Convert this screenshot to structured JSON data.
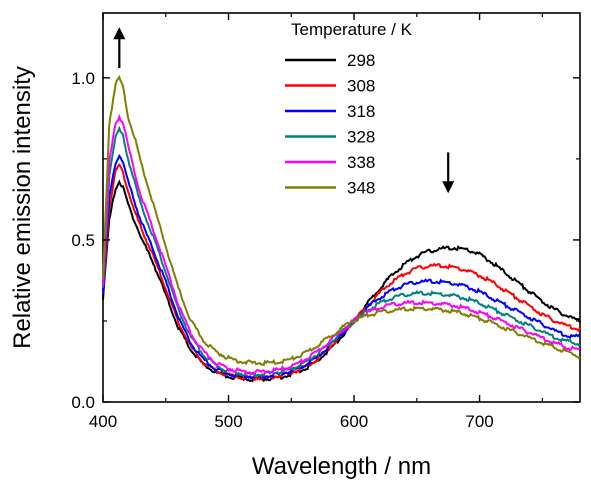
{
  "chart_data": {
    "type": "line",
    "title": "",
    "xlabel": "Wavelength / nm",
    "ylabel": "Relative emission intensity",
    "xlim": [
      400,
      780
    ],
    "ylim": [
      0.0,
      1.2
    ],
    "xticks": [
      400,
      500,
      600,
      700
    ],
    "xtick_labels": [
      "400",
      "500",
      "600",
      "700"
    ],
    "yticks": [
      0.0,
      0.5,
      1.0
    ],
    "ytick_labels": [
      "0.0",
      "0.5",
      "1.0"
    ],
    "grid": false,
    "legend": {
      "title": "Temperature / K",
      "position": "top-right"
    },
    "x": [
      400,
      405,
      410,
      413,
      416,
      420,
      425,
      430,
      440,
      450,
      460,
      470,
      480,
      490,
      500,
      510,
      520,
      530,
      540,
      550,
      560,
      570,
      580,
      590,
      600,
      610,
      620,
      630,
      640,
      650,
      660,
      670,
      680,
      690,
      700,
      710,
      720,
      730,
      740,
      750,
      760,
      770,
      780
    ],
    "series": [
      {
        "name": "298",
        "color": "#000000",
        "values": [
          0.32,
          0.56,
          0.66,
          0.68,
          0.66,
          0.61,
          0.56,
          0.51,
          0.43,
          0.33,
          0.23,
          0.16,
          0.115,
          0.09,
          0.078,
          0.072,
          0.07,
          0.072,
          0.076,
          0.085,
          0.1,
          0.125,
          0.16,
          0.2,
          0.25,
          0.3,
          0.35,
          0.39,
          0.425,
          0.45,
          0.465,
          0.473,
          0.475,
          0.47,
          0.455,
          0.43,
          0.4,
          0.37,
          0.34,
          0.31,
          0.285,
          0.265,
          0.25
        ]
      },
      {
        "name": "308",
        "color": "#ff0000",
        "values": [
          0.33,
          0.6,
          0.71,
          0.73,
          0.71,
          0.65,
          0.59,
          0.54,
          0.45,
          0.35,
          0.245,
          0.17,
          0.12,
          0.095,
          0.082,
          0.076,
          0.074,
          0.076,
          0.081,
          0.09,
          0.106,
          0.13,
          0.165,
          0.205,
          0.25,
          0.295,
          0.335,
          0.37,
          0.395,
          0.412,
          0.42,
          0.42,
          0.415,
          0.405,
          0.39,
          0.37,
          0.345,
          0.32,
          0.295,
          0.27,
          0.25,
          0.235,
          0.225
        ]
      },
      {
        "name": "318",
        "color": "#0000ff",
        "values": [
          0.34,
          0.63,
          0.74,
          0.76,
          0.74,
          0.68,
          0.62,
          0.56,
          0.47,
          0.37,
          0.26,
          0.18,
          0.13,
          0.1,
          0.087,
          0.08,
          0.078,
          0.08,
          0.085,
          0.095,
          0.112,
          0.137,
          0.17,
          0.21,
          0.25,
          0.29,
          0.32,
          0.345,
          0.36,
          0.37,
          0.372,
          0.37,
          0.365,
          0.355,
          0.34,
          0.32,
          0.3,
          0.28,
          0.26,
          0.24,
          0.22,
          0.205,
          0.2
        ]
      },
      {
        "name": "328",
        "color": "#008080",
        "values": [
          0.35,
          0.7,
          0.82,
          0.84,
          0.82,
          0.75,
          0.68,
          0.61,
          0.51,
          0.4,
          0.285,
          0.2,
          0.145,
          0.112,
          0.096,
          0.088,
          0.085,
          0.087,
          0.092,
          0.102,
          0.12,
          0.145,
          0.178,
          0.215,
          0.25,
          0.28,
          0.305,
          0.32,
          0.33,
          0.335,
          0.335,
          0.332,
          0.327,
          0.318,
          0.305,
          0.288,
          0.27,
          0.252,
          0.235,
          0.217,
          0.2,
          0.187,
          0.18
        ]
      },
      {
        "name": "338",
        "color": "#ff00ff",
        "values": [
          0.36,
          0.74,
          0.86,
          0.88,
          0.86,
          0.79,
          0.71,
          0.64,
          0.53,
          0.42,
          0.3,
          0.21,
          0.155,
          0.12,
          0.103,
          0.095,
          0.092,
          0.094,
          0.099,
          0.11,
          0.128,
          0.153,
          0.185,
          0.22,
          0.252,
          0.275,
          0.29,
          0.3,
          0.305,
          0.306,
          0.305,
          0.302,
          0.297,
          0.288,
          0.276,
          0.262,
          0.246,
          0.23,
          0.214,
          0.198,
          0.182,
          0.168,
          0.16
        ]
      },
      {
        "name": "348",
        "color": "#808000",
        "values": [
          0.38,
          0.86,
          0.98,
          1.0,
          0.97,
          0.88,
          0.82,
          0.74,
          0.61,
          0.48,
          0.35,
          0.25,
          0.19,
          0.155,
          0.135,
          0.125,
          0.12,
          0.12,
          0.123,
          0.132,
          0.148,
          0.172,
          0.2,
          0.228,
          0.252,
          0.267,
          0.276,
          0.282,
          0.286,
          0.288,
          0.287,
          0.284,
          0.279,
          0.27,
          0.258,
          0.244,
          0.228,
          0.213,
          0.198,
          0.183,
          0.168,
          0.154,
          0.14
        ]
      }
    ],
    "annotations": [
      {
        "type": "arrow",
        "direction": "up",
        "x": 413,
        "y_from": 1.03,
        "y_to": 1.15
      },
      {
        "type": "arrow",
        "direction": "down",
        "x": 675,
        "y_from": 0.77,
        "y_to": 0.65
      }
    ]
  }
}
